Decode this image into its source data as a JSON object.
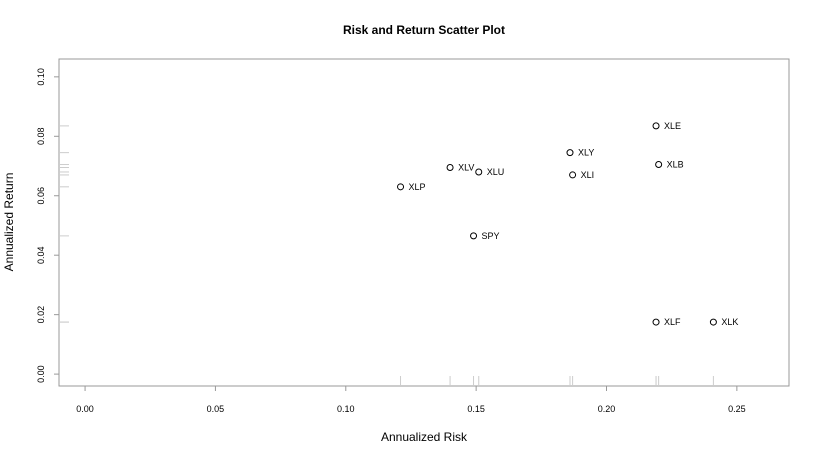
{
  "chart_data": {
    "type": "scatter",
    "title": "Risk and Return Scatter Plot",
    "xlabel": "Annualized Risk",
    "ylabel": "Annualized Return",
    "xlim": [
      -0.01,
      0.27
    ],
    "ylim": [
      -0.004,
      0.106
    ],
    "x_ticks": [
      "0.00",
      "0.05",
      "0.10",
      "0.15",
      "0.20",
      "0.25"
    ],
    "y_ticks": [
      "0.00",
      "0.02",
      "0.04",
      "0.06",
      "0.08",
      "0.10"
    ],
    "rug": true,
    "grid": false,
    "points": [
      {
        "label": "XLE",
        "x": 0.219,
        "y": 0.0835
      },
      {
        "label": "XLY",
        "x": 0.186,
        "y": 0.0745
      },
      {
        "label": "XLB",
        "x": 0.22,
        "y": 0.0705
      },
      {
        "label": "XLV",
        "x": 0.14,
        "y": 0.0695
      },
      {
        "label": "XLU",
        "x": 0.151,
        "y": 0.068
      },
      {
        "label": "XLI",
        "x": 0.187,
        "y": 0.067
      },
      {
        "label": "XLP",
        "x": 0.121,
        "y": 0.063
      },
      {
        "label": "SPY",
        "x": 0.149,
        "y": 0.0465
      },
      {
        "label": "XLF",
        "x": 0.219,
        "y": 0.0175
      },
      {
        "label": "XLK",
        "x": 0.241,
        "y": 0.0175
      }
    ]
  }
}
